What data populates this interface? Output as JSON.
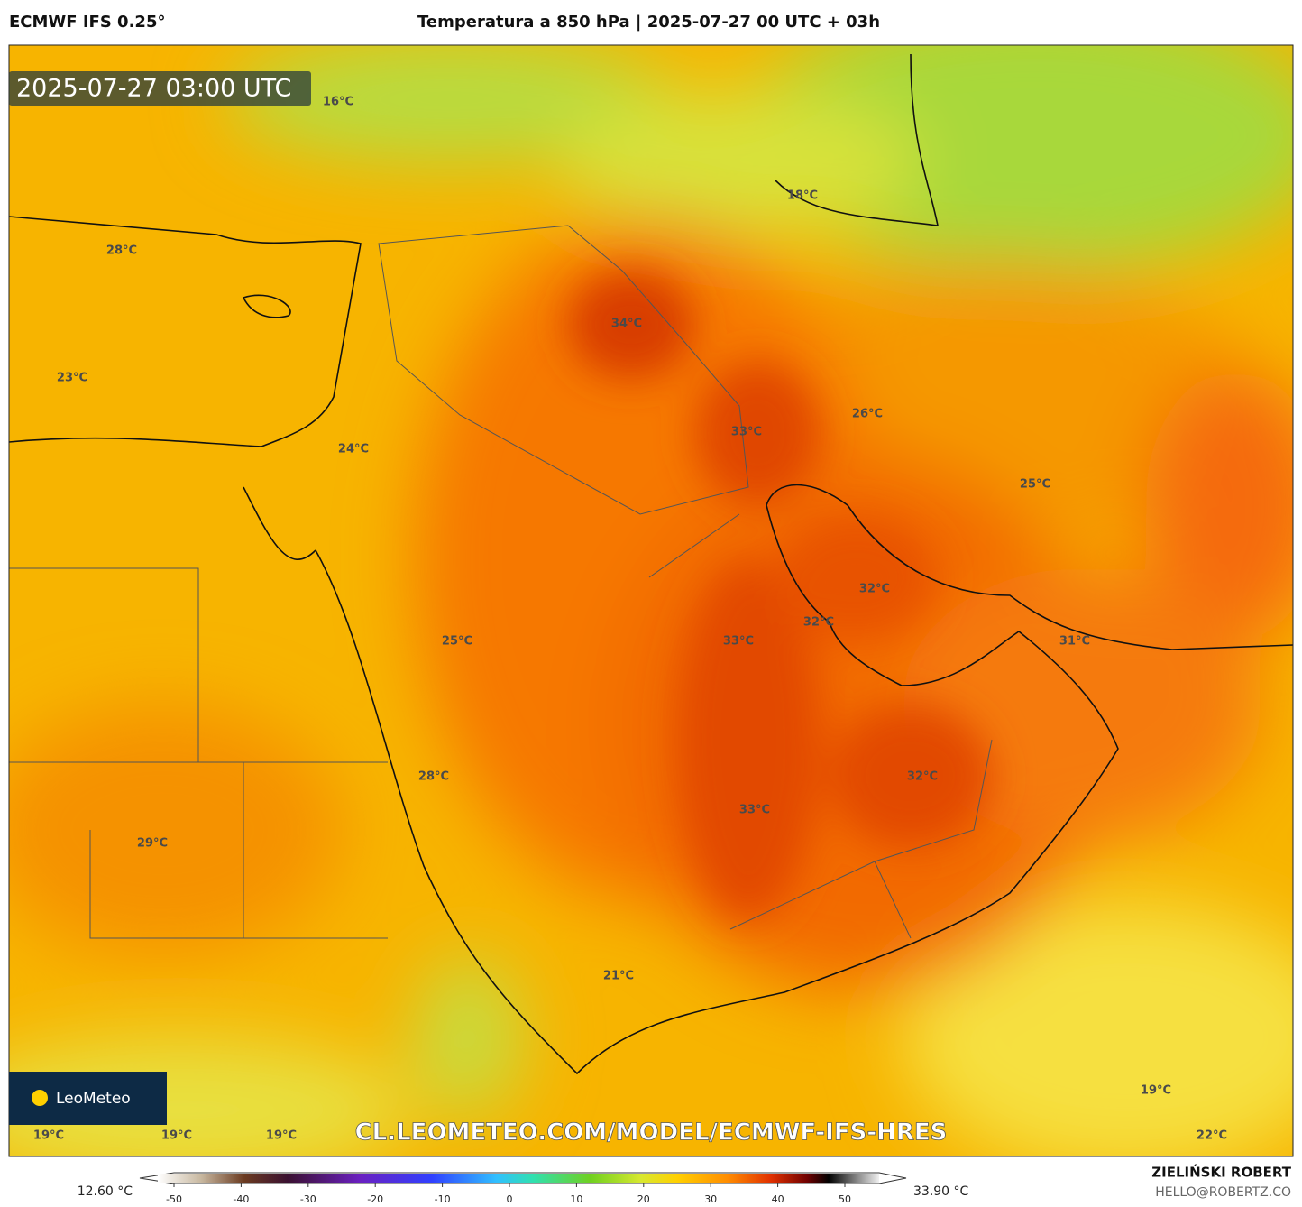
{
  "header": {
    "model": "ECMWF IFS 0.25°",
    "title": "Temperatura a 850 hPa | 2025-07-27 00 UTC + 03h"
  },
  "map": {
    "timestamp": "2025-07-27 03:00 UTC",
    "watermark": "CL.LEOMETEO.COM/MODEL/ECMWF-IFS-HRES",
    "logo": "LeoMeteo",
    "labels": [
      "16°C",
      "18°C",
      "28°C",
      "34°C",
      "23°C",
      "33°C",
      "26°C",
      "24°C",
      "25°C",
      "32°C",
      "32°C",
      "25°C",
      "33°C",
      "31°C",
      "28°C",
      "32°C",
      "33°C",
      "29°C",
      "21°C",
      "19°C",
      "19°C",
      "19°C",
      "19°C",
      "22°C"
    ]
  },
  "colorbar": {
    "min_label": "12.60 °C",
    "max_label": "33.90 °C",
    "ticks": [
      -50,
      -40,
      -30,
      -20,
      -10,
      0,
      10,
      20,
      30,
      40,
      50
    ]
  },
  "footer": {
    "author": "ZIELIŃSKI ROBERT",
    "email": "HELLO@ROBERTZ.CO"
  }
}
